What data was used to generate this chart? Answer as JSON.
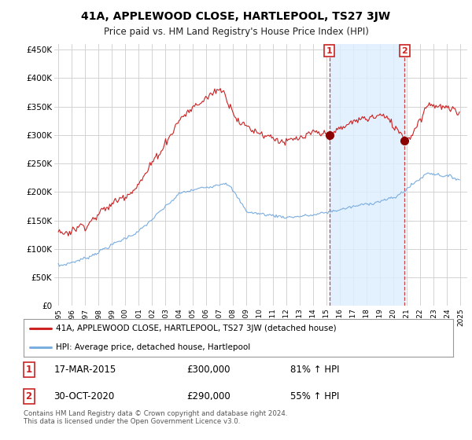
{
  "title": "41A, APPLEWOOD CLOSE, HARTLEPOOL, TS27 3JW",
  "subtitle": "Price paid vs. HM Land Registry's House Price Index (HPI)",
  "ylabel_ticks": [
    "£0",
    "£50K",
    "£100K",
    "£150K",
    "£200K",
    "£250K",
    "£300K",
    "£350K",
    "£400K",
    "£450K"
  ],
  "ytick_values": [
    0,
    50000,
    100000,
    150000,
    200000,
    250000,
    300000,
    350000,
    400000,
    450000
  ],
  "ylim": [
    0,
    460000
  ],
  "hpi_color": "#7aade0",
  "price_color": "#cc2222",
  "vline_color": "#cc2222",
  "shade_color": "#ddeeff",
  "legend_line1": "41A, APPLEWOOD CLOSE, HARTLEPOOL, TS27 3JW (detached house)",
  "legend_line2": "HPI: Average price, detached house, Hartlepool",
  "footer": "Contains HM Land Registry data © Crown copyright and database right 2024.\nThis data is licensed under the Open Government Licence v3.0.",
  "sale1_year": 2015.21,
  "sale1_price": 300000,
  "sale2_year": 2020.83,
  "sale2_price": 290000
}
